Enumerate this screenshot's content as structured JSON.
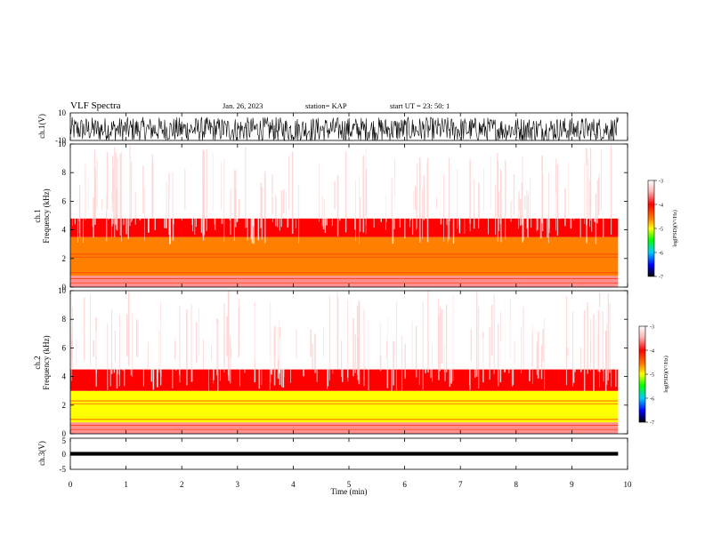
{
  "header": {
    "title": "VLF Spectra",
    "date": "Jan. 26, 2023",
    "station": "station= KAP",
    "start_ut": "start  UT  =   23: 50: 1"
  },
  "panels": {
    "ch1_waveform": {
      "ylabel": "ch.1(V)",
      "ticks": [
        "10",
        "-10"
      ]
    },
    "ch1_spectrogram": {
      "ylabel_line1": "ch.1",
      "ylabel_line2": "Frequency (kHz)",
      "ticks": [
        "0",
        "2",
        "4",
        "6",
        "8",
        "10"
      ]
    },
    "ch2_spectrogram": {
      "ylabel_line1": "ch.2",
      "ylabel_line2": "Frequency (kHz)",
      "ticks": [
        "0",
        "2",
        "4",
        "6",
        "8",
        "10"
      ]
    },
    "ch3_waveform": {
      "ylabel": "ch.3(V)",
      "ticks": [
        "5",
        "0",
        "-5"
      ]
    }
  },
  "colorbar": {
    "label": "log(PSD)(V²/Hz)",
    "ticks": [
      "-3",
      "-4",
      "-5",
      "-6",
      "-7"
    ],
    "colors": [
      "#ffffff",
      "#ff0000",
      "#ffff00",
      "#00ff00",
      "#00aaff",
      "#0000ff",
      "#000000"
    ]
  },
  "xaxis": {
    "label": "Time (min)",
    "ticks": [
      "0",
      "1",
      "2",
      "3",
      "4",
      "5",
      "6",
      "7",
      "8",
      "9",
      "10"
    ]
  },
  "chart_data": [
    {
      "type": "line",
      "name": "ch.1 waveform",
      "ylabel": "ch.1(V)",
      "xlim": [
        0,
        9.83
      ],
      "ylim": [
        -10,
        10
      ],
      "description_values": {
        "approx_center": -2,
        "approx_range": [
          -10,
          10
        ]
      }
    },
    {
      "type": "heatmap",
      "name": "ch.1 spectrogram",
      "ylabel": "Frequency (kHz)",
      "xlim": [
        0,
        9.83
      ],
      "ylim": [
        0,
        10
      ],
      "zlim": [
        -7,
        -3
      ],
      "zlabel": "log(PSD)(V²/Hz)",
      "bands": [
        {
          "freq_khz": [
            0,
            0.8
          ],
          "level": -3.6
        },
        {
          "freq_khz": [
            0.8,
            3.5
          ],
          "level": -4.7
        },
        {
          "freq_khz": [
            3.5,
            4.8
          ],
          "level": -4.0
        },
        {
          "freq_khz": [
            4.8,
            10
          ],
          "level": -3.3
        }
      ]
    },
    {
      "type": "heatmap",
      "name": "ch.2 spectrogram",
      "ylabel": "Frequency (kHz)",
      "xlim": [
        0,
        9.83
      ],
      "ylim": [
        0,
        10
      ],
      "zlim": [
        -7,
        -3
      ],
      "zlabel": "log(PSD)(V²/Hz)",
      "bands": [
        {
          "freq_khz": [
            0,
            0.8
          ],
          "level": -3.8
        },
        {
          "freq_khz": [
            0.8,
            3.0
          ],
          "level": -5.2
        },
        {
          "freq_khz": [
            3.0,
            4.5
          ],
          "level": -4.2
        },
        {
          "freq_khz": [
            4.5,
            10
          ],
          "level": -3.3
        }
      ]
    },
    {
      "type": "line",
      "name": "ch.3 waveform",
      "ylabel": "ch.3(V)",
      "xlim": [
        0,
        9.83
      ],
      "ylim": [
        -5,
        5
      ],
      "description_values": {
        "approx_center": 0,
        "approx_range": [
          -0.5,
          0.5
        ]
      }
    }
  ]
}
